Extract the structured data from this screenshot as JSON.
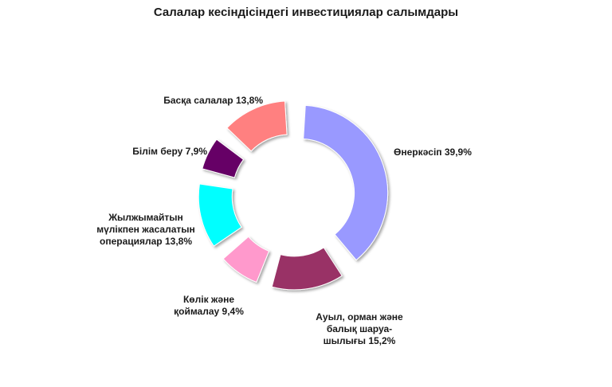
{
  "chart_data": {
    "type": "pie",
    "title": "Салалар кесіндісіндегі инвестициялар салымдары",
    "slices": [
      {
        "label": "Өнеркәсіп 39,9%",
        "value": 39.9,
        "color": "#9999ff"
      },
      {
        "label": "Ауыл, орман және балық шаруа-шылығы 15,2%",
        "value": 15.2,
        "color": "#993366"
      },
      {
        "label": "Көлік және қоймалау 9,4%",
        "value": 9.4,
        "color": "#ff99cc"
      },
      {
        "label": "Жылжымайтын мүлікпен жасалатын операциялар 13,8%",
        "value": 13.8,
        "color": "#00ffff"
      },
      {
        "label": "Білім беру 7,9%",
        "value": 7.9,
        "color": "#660066"
      },
      {
        "label": "Басқа салалар 13,8%",
        "value": 13.8,
        "color": "#ff8080"
      }
    ],
    "legend": "none"
  }
}
